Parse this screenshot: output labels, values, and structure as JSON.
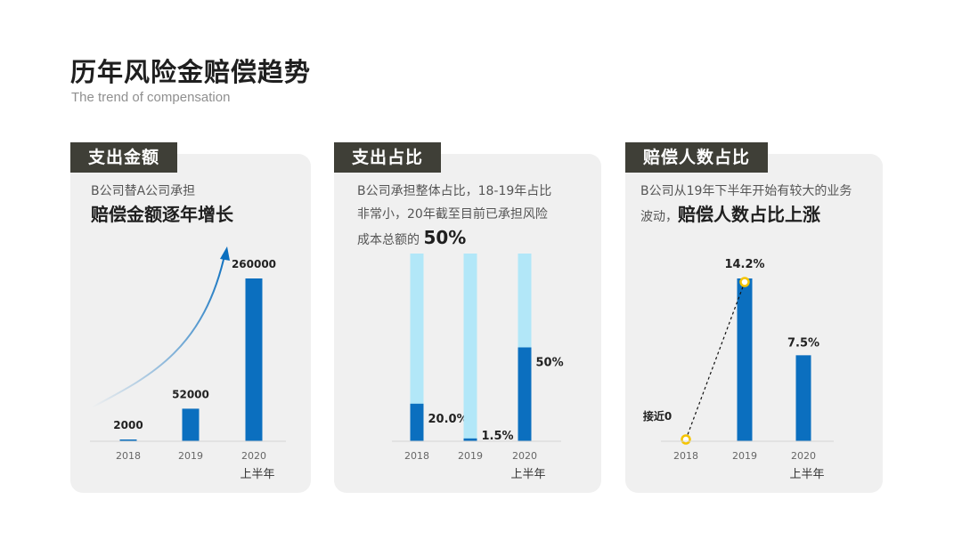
{
  "header": {
    "title": "历年风险金赔偿趋势",
    "subtitle": "The trend of compensation"
  },
  "colors": {
    "bar": "#0b6fbf",
    "bar_light": "#b2e7f8",
    "label_bg": "#3f3f37",
    "card_bg": "#f0f0f0",
    "marker": "#f5c400"
  },
  "panels": [
    {
      "label": "支出金额",
      "desc_plain": "B公司替A公司承担",
      "desc_emphasis": "赔偿金额逐年增长"
    },
    {
      "label": "支出占比",
      "desc_line1": "B公司承担整体占比，18-19年占比",
      "desc_line2": "非常小，20年截至目前已承担风险",
      "desc_line3": "成本总额的",
      "desc_emphasis": "50%"
    },
    {
      "label": "赔偿人数占比",
      "desc_line1": "B公司从19年下半年开始有较大的业务",
      "desc_line2": "波动，",
      "desc_emphasis": "赔偿人数占比上涨"
    }
  ],
  "chart_data": [
    {
      "type": "bar",
      "categories": [
        "2018",
        "2019",
        "2020"
      ],
      "sub_labels": [
        "",
        "",
        "上半年"
      ],
      "values": [
        2000,
        52000,
        260000
      ],
      "data_labels": [
        "2000",
        "52000",
        "260000"
      ],
      "ylim": [
        0,
        260000
      ]
    },
    {
      "type": "bar",
      "stacked": true,
      "categories": [
        "2018",
        "2019",
        "2020"
      ],
      "sub_labels": [
        "",
        "",
        "上半年"
      ],
      "values": [
        20.0,
        1.5,
        50
      ],
      "data_labels": [
        "20.0%",
        "1.5%",
        "50%"
      ],
      "ylim": [
        0,
        100
      ]
    },
    {
      "type": "bar",
      "categories": [
        "2018",
        "2019",
        "2020"
      ],
      "sub_labels": [
        "",
        "",
        "上半年"
      ],
      "values": [
        0,
        14.2,
        7.5
      ],
      "data_labels": [
        "接近0",
        "14.2%",
        "7.5%"
      ],
      "ylim": [
        0,
        14.2
      ]
    }
  ]
}
